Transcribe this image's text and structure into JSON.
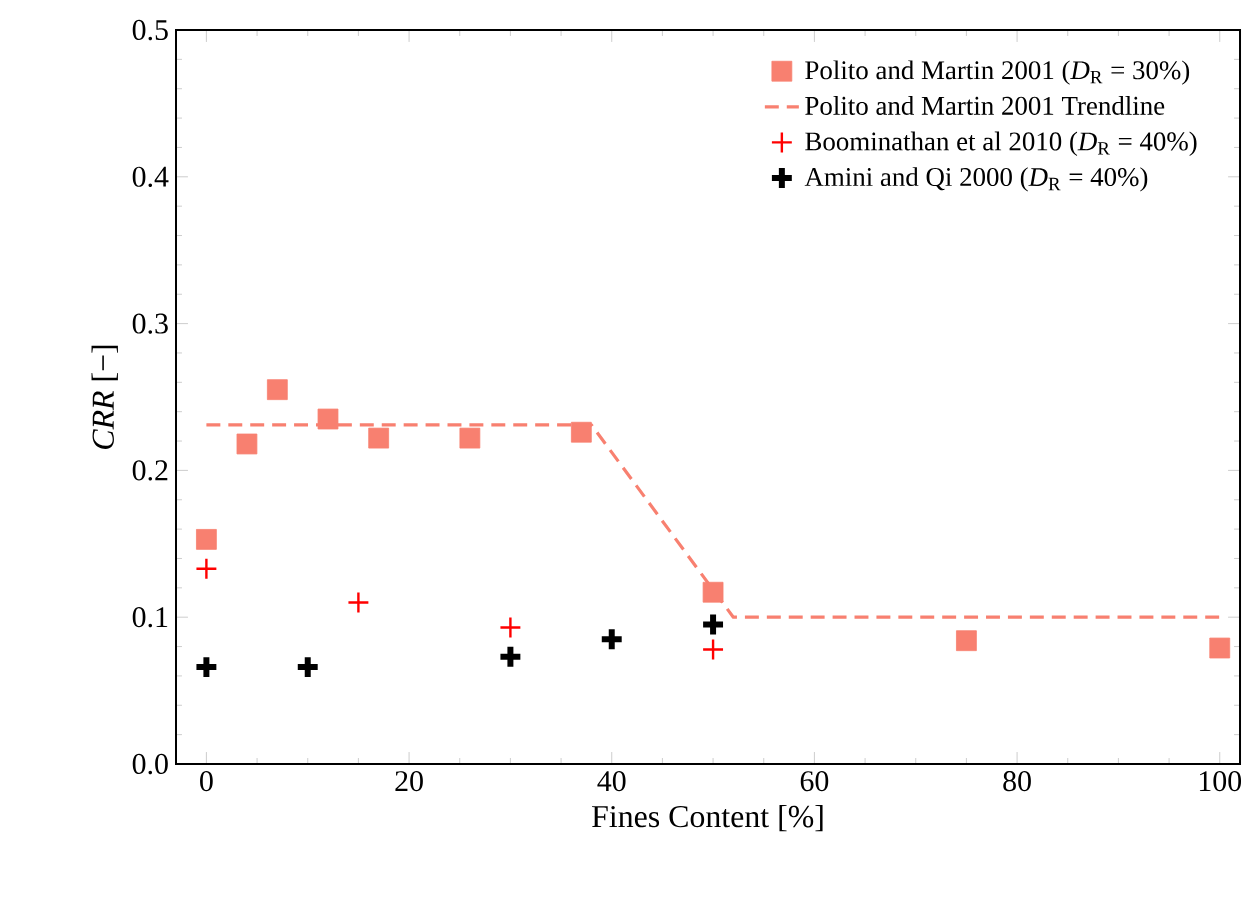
{
  "chart_data": {
    "type": "scatter",
    "xlabel": "Fines Content [%]",
    "ylabel": "*CRR* [−]",
    "xlim": [
      -3,
      102
    ],
    "ylim": [
      0,
      0.5
    ],
    "xticks": [
      0,
      20,
      40,
      60,
      80,
      100
    ],
    "yticks": [
      {
        "value": 0,
        "label": "0.0"
      },
      0.1,
      0.2,
      0.3,
      0.4,
      0.5
    ],
    "grid": false,
    "legend": "top right",
    "series": [
      {
        "name": "Polito and Martin 2001 (*D*$_{R}$ = 30%)",
        "marker": "square",
        "color": "#f88070",
        "x": [
          0,
          4,
          7,
          12,
          17,
          26,
          37,
          50,
          75,
          100
        ],
        "values": [
          0.153,
          0.218,
          0.255,
          0.235,
          0.222,
          0.222,
          0.226,
          0.117,
          0.084,
          0.079
        ]
      },
      {
        "name": "Polito and Martin 2001 Trendline",
        "type": "line",
        "line_style": "dashed",
        "color": "#f88070",
        "x": [
          0,
          38,
          52,
          100
        ],
        "values": [
          0.231,
          0.231,
          0.1,
          0.1
        ]
      },
      {
        "name": "Boominathan et al 2010 (*D*$_{R}$ = 40%)",
        "marker": "cross",
        "color": "#ff0000",
        "x": [
          0,
          15,
          30,
          50
        ],
        "values": [
          0.133,
          0.11,
          0.093,
          0.078
        ]
      },
      {
        "name": "Amini and Qi 2000 (*D*$_{R}$ = 40%)",
        "marker": "cross",
        "color": "#000000",
        "x": [
          0,
          10,
          30,
          40,
          50
        ],
        "values": [
          0.066,
          0.066,
          0.073,
          0.085,
          0.095
        ]
      }
    ]
  }
}
